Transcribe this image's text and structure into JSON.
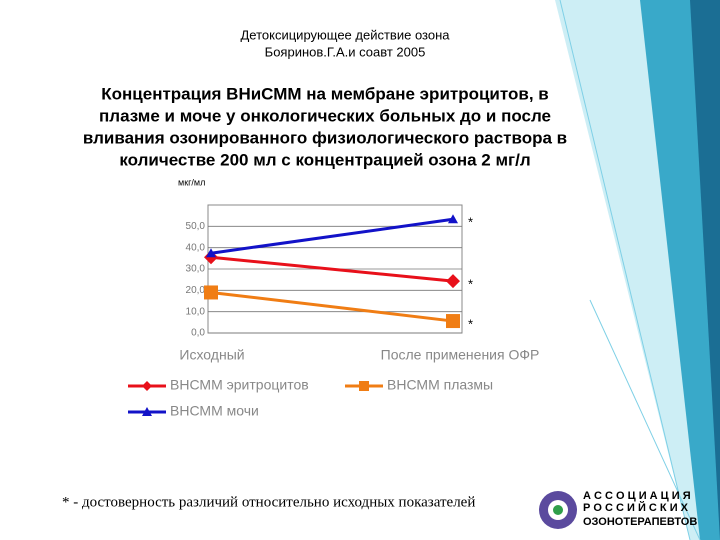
{
  "slide": {
    "title": "Детоксицирующее действие озона",
    "subtitle": "Бояринов.Г.А.и соавт 2005",
    "heading": [
      "Концентрация ВНиСММ на мембране эритроцитов, в",
      "плазме и моче у онкологических больных до и после",
      "вливания озонированного физиологического раствора в",
      "количестве 200 мл с концентрацией озона 2 мг/л"
    ],
    "footnote": "* - достоверность различий относительно  исходных показателей",
    "logo": [
      "А С С О Ц И А Ц И Я",
      "Р О С С И Й С К И Х",
      "ОЗОНОТЕРАПЕВТОВ"
    ]
  },
  "chart_data": {
    "type": "line",
    "y_label": "мкг/мл",
    "categories": [
      "Исходный",
      "После применения ОФР"
    ],
    "series": [
      {
        "name": "ВНСММ эритроцитов",
        "color": "#e8101a",
        "marker": "diamond",
        "values": [
          35.5,
          24.3
        ]
      },
      {
        "name": "ВНСММ плазмы",
        "color": "#f07d14",
        "marker": "square",
        "values": [
          19,
          5.6
        ]
      },
      {
        "name": "ВНСММ мочи",
        "color": "#1212c8",
        "marker": "triangle",
        "values": [
          37.4,
          53.3
        ]
      }
    ],
    "annotations": [
      "*",
      "*",
      "*"
    ],
    "ylim": [
      0,
      60
    ],
    "yticks": [
      {
        "value": 0,
        "label": "0,0"
      },
      {
        "value": 10,
        "label": "10,0"
      },
      {
        "value": 20,
        "label": "20,0"
      },
      {
        "value": 30,
        "label": "30,0"
      },
      {
        "value": 40,
        "label": "40,0"
      },
      {
        "value": 50,
        "label": "50,0"
      }
    ],
    "grid": true
  }
}
